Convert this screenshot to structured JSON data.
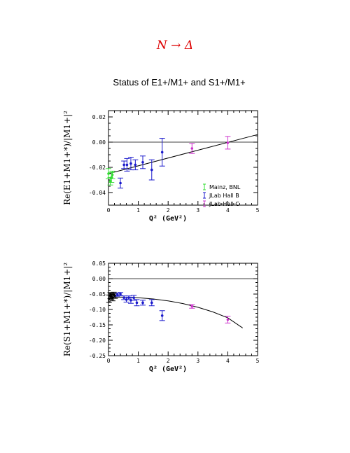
{
  "header": {
    "title": "N → Δ",
    "subtitle": "Status of E1+/M1+ and S1+/M1+"
  },
  "colors": {
    "title": "#dd0000",
    "mainz": "#33dd33",
    "hallb": "#1a1acc",
    "hallc": "#cc33cc",
    "axis": "#000000"
  },
  "chart_data": [
    {
      "type": "scatter",
      "xlabel": "Q² (GeV²)",
      "ylabel": "Re(E1+M1+*)/|M1+|²",
      "xlim": [
        0,
        5
      ],
      "ylim": [
        -0.05,
        0.025
      ],
      "xticks": [
        "0",
        "1",
        "2",
        "3",
        "4",
        "5"
      ],
      "yticks": [
        "0.02",
        "0.00",
        "-0.02",
        "-0.04"
      ],
      "ytick_values": [
        0.02,
        0.0,
        -0.02,
        -0.04
      ],
      "hline": 0,
      "legend_position": "lower-right",
      "legend": [
        "Mainz, BNL",
        "JLab Hall B",
        "JLab Hall C"
      ],
      "series": [
        {
          "name": "Mainz, BNL",
          "color_key": "mainz",
          "points": [
            {
              "x": 0.0,
              "y": -0.025,
              "e": 0.004
            },
            {
              "x": 0.06,
              "y": -0.031,
              "e": 0.003
            },
            {
              "x": 0.1,
              "y": -0.028,
              "e": 0.004
            },
            {
              "x": 0.13,
              "y": -0.026,
              "e": 0.003
            }
          ]
        },
        {
          "name": "JLab Hall B",
          "color_key": "hallb",
          "points": [
            {
              "x": 0.4,
              "y": -0.0325,
              "e": 0.004
            },
            {
              "x": 0.52,
              "y": -0.018,
              "e": 0.003
            },
            {
              "x": 0.62,
              "y": -0.018,
              "e": 0.005
            },
            {
              "x": 0.75,
              "y": -0.017,
              "e": 0.005
            },
            {
              "x": 0.9,
              "y": -0.018,
              "e": 0.004
            },
            {
              "x": 1.15,
              "y": -0.016,
              "e": 0.005
            },
            {
              "x": 1.45,
              "y": -0.022,
              "e": 0.008
            },
            {
              "x": 1.8,
              "y": -0.008,
              "e": 0.011
            }
          ]
        },
        {
          "name": "JLab Hall C",
          "color_key": "hallc",
          "points": [
            {
              "x": 2.8,
              "y": -0.005,
              "e": 0.004
            },
            {
              "x": 4.0,
              "y": -0.0005,
              "e": 0.005
            }
          ]
        }
      ],
      "fit_curve": {
        "x": [
          0,
          5
        ],
        "y": [
          -0.025,
          0.006
        ]
      }
    },
    {
      "type": "scatter",
      "xlabel": "Q² (GeV²)",
      "ylabel": "Re(S1+M1+*)/|M1+|²",
      "xlim": [
        0,
        5
      ],
      "ylim": [
        -0.25,
        0.05
      ],
      "xticks": [
        "0",
        "1",
        "2",
        "3",
        "4",
        "5"
      ],
      "yticks": [
        "0.05",
        "0.00",
        "-0.05",
        "-0.10",
        "-0.15",
        "-0.20",
        "-0.25"
      ],
      "ytick_values": [
        0.05,
        0.0,
        -0.05,
        -0.1,
        -0.15,
        -0.2,
        -0.25
      ],
      "hline": 0,
      "series": [
        {
          "name": "Mainz, BNL",
          "color_key": "axis",
          "points": [
            {
              "x": 0.02,
              "y": -0.065,
              "e": 0.012
            },
            {
              "x": 0.06,
              "y": -0.055,
              "e": 0.01
            },
            {
              "x": 0.1,
              "y": -0.058,
              "e": 0.01
            },
            {
              "x": 0.14,
              "y": -0.062,
              "e": 0.01
            },
            {
              "x": 0.18,
              "y": -0.052,
              "e": 0.008
            },
            {
              "x": 0.22,
              "y": -0.056,
              "e": 0.008
            }
          ]
        },
        {
          "name": "JLab Hall B",
          "color_key": "hallb",
          "points": [
            {
              "x": 0.3,
              "y": -0.052,
              "e": 0.005
            },
            {
              "x": 0.4,
              "y": -0.05,
              "e": 0.005
            },
            {
              "x": 0.52,
              "y": -0.062,
              "e": 0.006
            },
            {
              "x": 0.6,
              "y": -0.068,
              "e": 0.008
            },
            {
              "x": 0.68,
              "y": -0.062,
              "e": 0.006
            },
            {
              "x": 0.75,
              "y": -0.07,
              "e": 0.01
            },
            {
              "x": 0.85,
              "y": -0.062,
              "e": 0.008
            },
            {
              "x": 0.95,
              "y": -0.078,
              "e": 0.01
            },
            {
              "x": 1.15,
              "y": -0.078,
              "e": 0.008
            },
            {
              "x": 1.45,
              "y": -0.078,
              "e": 0.01
            },
            {
              "x": 1.8,
              "y": -0.12,
              "e": 0.016
            }
          ]
        },
        {
          "name": "JLab Hall C",
          "color_key": "hallc",
          "points": [
            {
              "x": 2.8,
              "y": -0.09,
              "e": 0.006
            },
            {
              "x": 4.0,
              "y": -0.133,
              "e": 0.011
            }
          ]
        }
      ],
      "fit_curve": {
        "x": [
          0,
          0.25,
          0.5,
          1.0,
          1.5,
          2.0,
          2.5,
          3.0,
          3.5,
          4.0,
          4.5
        ],
        "y": [
          -0.062,
          -0.06,
          -0.06,
          -0.062,
          -0.066,
          -0.072,
          -0.081,
          -0.093,
          -0.108,
          -0.127,
          -0.16
        ]
      }
    }
  ]
}
